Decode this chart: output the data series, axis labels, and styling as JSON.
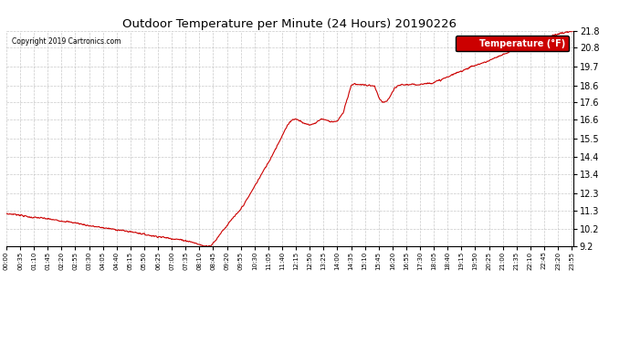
{
  "title": "Outdoor Temperature per Minute (24 Hours) 20190226",
  "copyright_text": "Copyright 2019 Cartronics.com",
  "legend_label": "Temperature (°F)",
  "line_color": "#cc0000",
  "background_color": "#ffffff",
  "plot_bg_color": "#ffffff",
  "grid_color": "#bbbbbb",
  "grid_linestyle": "--",
  "ylim": [
    9.2,
    21.8
  ],
  "yticks": [
    9.2,
    10.2,
    11.3,
    12.3,
    13.4,
    14.4,
    15.5,
    16.6,
    17.6,
    18.6,
    19.7,
    20.8,
    21.8
  ],
  "total_minutes": 1440,
  "legend_facecolor": "#cc0000",
  "legend_textcolor": "#ffffff",
  "tick_interval": 35,
  "keypoints": [
    [
      0,
      11.1
    ],
    [
      30,
      11.05
    ],
    [
      60,
      10.9
    ],
    [
      90,
      10.85
    ],
    [
      120,
      10.75
    ],
    [
      150,
      10.65
    ],
    [
      180,
      10.55
    ],
    [
      210,
      10.4
    ],
    [
      240,
      10.3
    ],
    [
      270,
      10.2
    ],
    [
      300,
      10.1
    ],
    [
      330,
      10.0
    ],
    [
      360,
      9.85
    ],
    [
      390,
      9.75
    ],
    [
      420,
      9.65
    ],
    [
      450,
      9.55
    ],
    [
      470,
      9.45
    ],
    [
      490,
      9.3
    ],
    [
      500,
      9.22
    ],
    [
      510,
      9.22
    ],
    [
      520,
      9.25
    ],
    [
      530,
      9.5
    ],
    [
      545,
      10.0
    ],
    [
      560,
      10.4
    ],
    [
      575,
      10.85
    ],
    [
      590,
      11.2
    ],
    [
      610,
      11.9
    ],
    [
      630,
      12.7
    ],
    [
      650,
      13.5
    ],
    [
      670,
      14.3
    ],
    [
      690,
      15.2
    ],
    [
      710,
      16.1
    ],
    [
      720,
      16.5
    ],
    [
      730,
      16.65
    ],
    [
      740,
      16.6
    ],
    [
      745,
      16.55
    ],
    [
      750,
      16.45
    ],
    [
      760,
      16.35
    ],
    [
      770,
      16.3
    ],
    [
      780,
      16.35
    ],
    [
      790,
      16.5
    ],
    [
      800,
      16.65
    ],
    [
      810,
      16.6
    ],
    [
      820,
      16.5
    ],
    [
      840,
      16.5
    ],
    [
      855,
      17.0
    ],
    [
      865,
      17.8
    ],
    [
      875,
      18.6
    ],
    [
      885,
      18.7
    ],
    [
      895,
      18.65
    ],
    [
      905,
      18.65
    ],
    [
      915,
      18.6
    ],
    [
      925,
      18.6
    ],
    [
      935,
      18.55
    ],
    [
      945,
      17.9
    ],
    [
      955,
      17.6
    ],
    [
      965,
      17.65
    ],
    [
      975,
      18.0
    ],
    [
      985,
      18.4
    ],
    [
      995,
      18.6
    ],
    [
      1005,
      18.65
    ],
    [
      1020,
      18.65
    ],
    [
      1040,
      18.65
    ],
    [
      1060,
      18.7
    ],
    [
      1080,
      18.75
    ],
    [
      1100,
      18.9
    ],
    [
      1120,
      19.1
    ],
    [
      1140,
      19.3
    ],
    [
      1160,
      19.5
    ],
    [
      1180,
      19.7
    ],
    [
      1200,
      19.85
    ],
    [
      1220,
      20.0
    ],
    [
      1240,
      20.2
    ],
    [
      1260,
      20.4
    ],
    [
      1280,
      20.6
    ],
    [
      1300,
      20.8
    ],
    [
      1320,
      21.0
    ],
    [
      1340,
      21.2
    ],
    [
      1360,
      21.4
    ],
    [
      1380,
      21.5
    ],
    [
      1400,
      21.6
    ],
    [
      1420,
      21.7
    ],
    [
      1439,
      21.8
    ]
  ]
}
